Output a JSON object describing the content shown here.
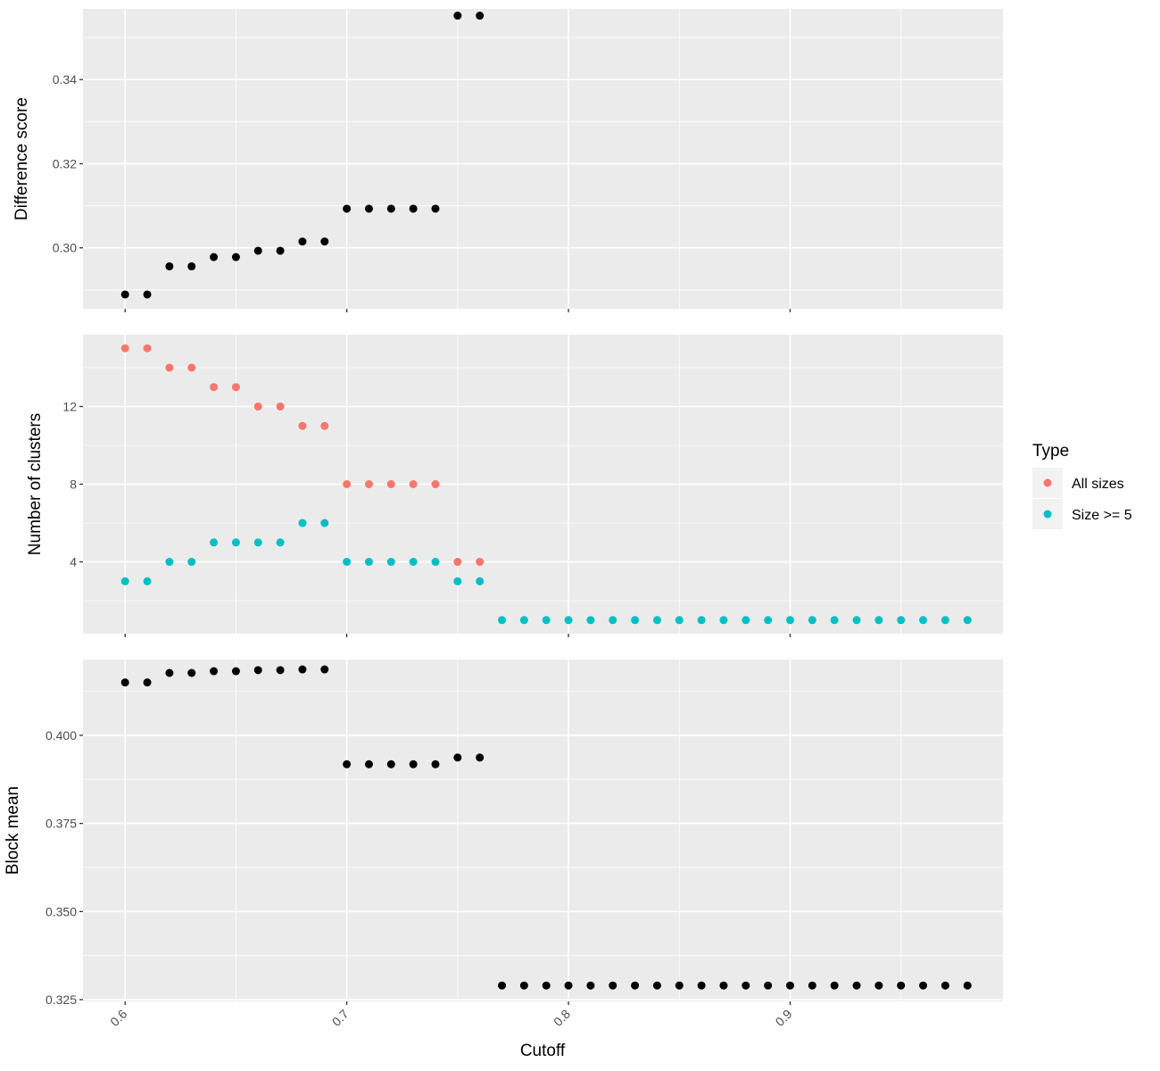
{
  "x_axis": {
    "label": "Cutoff",
    "ticks": [
      0.6,
      0.7,
      0.8,
      0.9
    ],
    "tick_labels": [
      "0.6",
      "0.7",
      "0.8",
      "0.9"
    ]
  },
  "legend": {
    "title": "Type",
    "entries": [
      {
        "label": "All sizes",
        "color": "#F8766D"
      },
      {
        "label": "Size >= 5",
        "color": "#00BFC4"
      }
    ]
  },
  "colors": {
    "panel_background": "#EBEBEB",
    "gridline": "#FFFFFF",
    "point_default": "#000000"
  },
  "chart_data": [
    {
      "type": "scatter",
      "ylabel": "Difference score",
      "xlim": [
        0.581,
        0.996
      ],
      "ylim": [
        0.2855,
        0.3568
      ],
      "y_ticks": [
        0.3,
        0.32,
        0.34
      ],
      "y_tick_labels": [
        "0.30",
        "0.32",
        "0.34"
      ],
      "series": [
        {
          "color": "#000000",
          "x": [
            0.6,
            0.61,
            0.62,
            0.63,
            0.64,
            0.65,
            0.66,
            0.67,
            0.68,
            0.69,
            0.7,
            0.71,
            0.72,
            0.73,
            0.74,
            0.75,
            0.76
          ],
          "y": [
            0.2889,
            0.2889,
            0.2956,
            0.2956,
            0.2978,
            0.2978,
            0.2993,
            0.2993,
            0.3015,
            0.3015,
            0.3093,
            0.3093,
            0.3093,
            0.3093,
            0.3093,
            0.3552,
            0.3552
          ]
        }
      ]
    },
    {
      "type": "scatter",
      "ylabel": "Number of clusters",
      "xlim": [
        0.581,
        0.996
      ],
      "ylim": [
        0.3,
        15.7
      ],
      "y_ticks": [
        4,
        8,
        12
      ],
      "y_tick_labels": [
        "4",
        "8",
        "12"
      ],
      "series": [
        {
          "name": "All sizes",
          "color": "#F8766D",
          "x": [
            0.6,
            0.61,
            0.62,
            0.63,
            0.64,
            0.65,
            0.66,
            0.67,
            0.68,
            0.69,
            0.7,
            0.71,
            0.72,
            0.73,
            0.74,
            0.75,
            0.76
          ],
          "y": [
            15,
            15,
            14,
            14,
            13,
            13,
            12,
            12,
            11,
            11,
            8,
            8,
            8,
            8,
            8,
            4,
            4
          ]
        },
        {
          "name": "Size >= 5",
          "color": "#00BFC4",
          "x": [
            0.6,
            0.61,
            0.62,
            0.63,
            0.64,
            0.65,
            0.66,
            0.67,
            0.68,
            0.69,
            0.7,
            0.71,
            0.72,
            0.73,
            0.74,
            0.75,
            0.76,
            0.77,
            0.78,
            0.79,
            0.8,
            0.81,
            0.82,
            0.83,
            0.84,
            0.85,
            0.86,
            0.87,
            0.88,
            0.89,
            0.9,
            0.91,
            0.92,
            0.93,
            0.94,
            0.95,
            0.96,
            0.97,
            0.98
          ],
          "y": [
            3,
            3,
            4,
            4,
            5,
            5,
            5,
            5,
            6,
            6,
            4,
            4,
            4,
            4,
            4,
            3,
            3,
            1,
            1,
            1,
            1,
            1,
            1,
            1,
            1,
            1,
            1,
            1,
            1,
            1,
            1,
            1,
            1,
            1,
            1,
            1,
            1,
            1,
            1
          ]
        }
      ]
    },
    {
      "type": "scatter",
      "ylabel": "Block mean",
      "xlim": [
        0.581,
        0.996
      ],
      "ylim": [
        0.3245,
        0.4215
      ],
      "y_ticks": [
        0.325,
        0.35,
        0.375,
        0.4
      ],
      "y_tick_labels": [
        "0.325",
        "0.350",
        "0.375",
        "0.400"
      ],
      "series": [
        {
          "color": "#000000",
          "x": [
            0.6,
            0.61,
            0.62,
            0.63,
            0.64,
            0.65,
            0.66,
            0.67,
            0.68,
            0.69,
            0.7,
            0.71,
            0.72,
            0.73,
            0.74,
            0.75,
            0.76,
            0.77,
            0.78,
            0.79,
            0.8,
            0.81,
            0.82,
            0.83,
            0.84,
            0.85,
            0.86,
            0.87,
            0.88,
            0.89,
            0.9,
            0.91,
            0.92,
            0.93,
            0.94,
            0.95,
            0.96,
            0.97,
            0.98
          ],
          "y": [
            0.415,
            0.415,
            0.4177,
            0.4177,
            0.4182,
            0.4182,
            0.4185,
            0.4185,
            0.4187,
            0.4187,
            0.3918,
            0.3918,
            0.3918,
            0.3918,
            0.3918,
            0.3937,
            0.3937,
            0.329,
            0.329,
            0.329,
            0.329,
            0.329,
            0.329,
            0.329,
            0.329,
            0.329,
            0.329,
            0.329,
            0.329,
            0.329,
            0.329,
            0.329,
            0.329,
            0.329,
            0.329,
            0.329,
            0.329,
            0.329,
            0.329
          ]
        }
      ]
    }
  ]
}
